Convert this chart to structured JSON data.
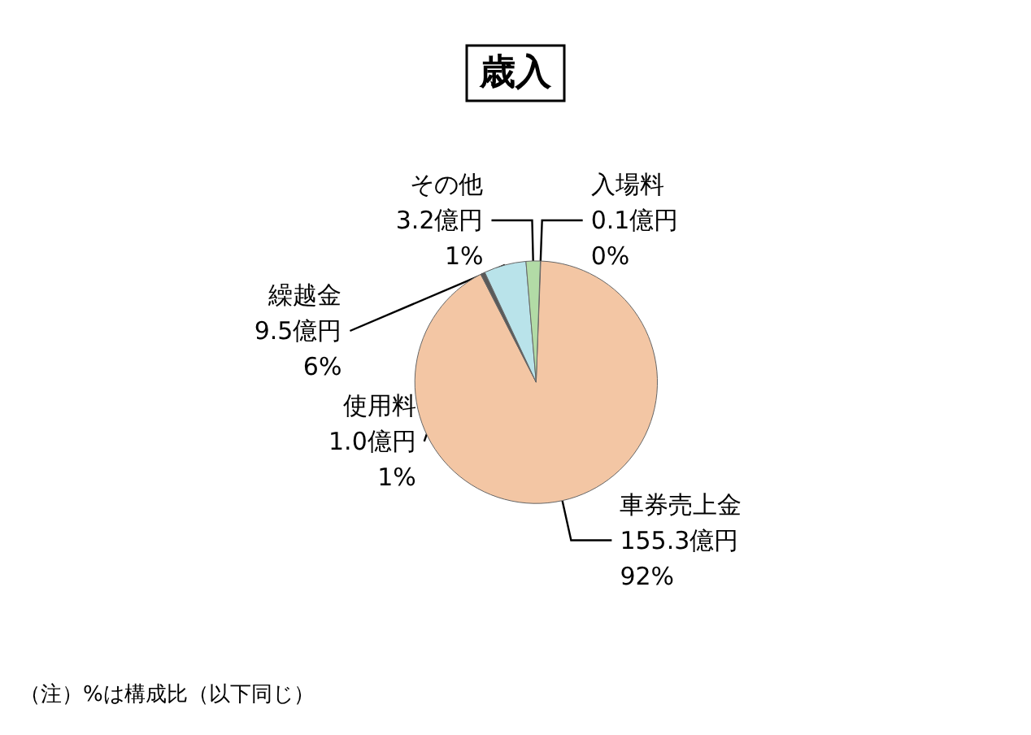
{
  "chart_data": {
    "type": "pie",
    "title": "歳入",
    "categories": [
      "入場料",
      "車券売上金",
      "使用料",
      "繰越金",
      "その他"
    ],
    "values": [
      0.1,
      155.3,
      1.0,
      9.5,
      3.2
    ],
    "value_labels": [
      "0.1億円\n0%",
      "155.3億円\n92%",
      "1.0億円\n1%",
      "9.5億円\n6%",
      "3.2億円\n1%"
    ],
    "colors": [
      "#cfe8cc",
      "#f3c6a4",
      "#5a5a5a",
      "#b9e3ea",
      "#b2dba6"
    ],
    "annotations": [
      "（注）%は構成比（以下同じ）"
    ],
    "legend": false
  }
}
